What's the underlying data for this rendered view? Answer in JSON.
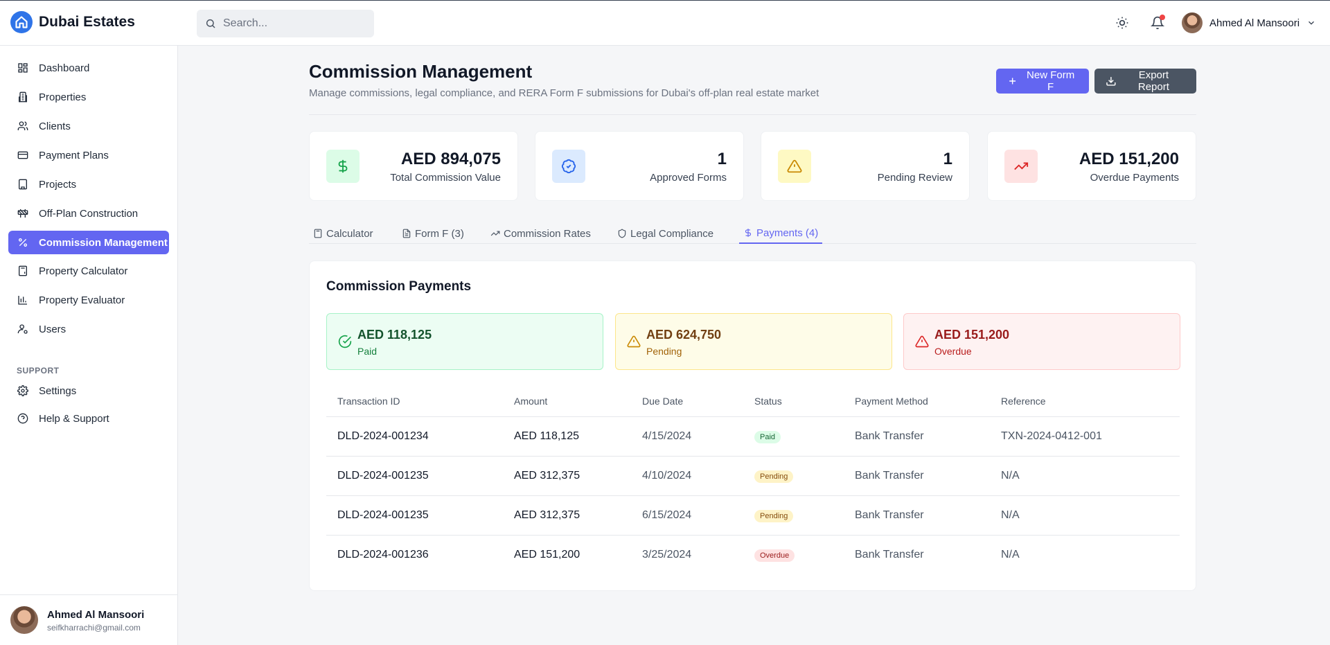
{
  "app": {
    "brand": "Dubai Estates",
    "search_placeholder": "Search...",
    "user_name": "Ahmed Al Mansoori"
  },
  "sidebar": {
    "items": [
      {
        "label": "Dashboard",
        "icon": "dashboard-icon"
      },
      {
        "label": "Properties",
        "icon": "building-icon"
      },
      {
        "label": "Clients",
        "icon": "users-icon"
      },
      {
        "label": "Payment Plans",
        "icon": "credit-card-icon"
      },
      {
        "label": "Projects",
        "icon": "office-icon"
      },
      {
        "label": "Off-Plan Construction",
        "icon": "construction-icon"
      },
      {
        "label": "Commission Management",
        "icon": "percent-icon",
        "active": true
      },
      {
        "label": "Property Calculator",
        "icon": "calculator-icon"
      },
      {
        "label": "Property Evaluator",
        "icon": "bar-chart-icon"
      },
      {
        "label": "Users",
        "icon": "user-key-icon"
      }
    ],
    "section_label": "SUPPORT",
    "support_items": [
      {
        "label": "Settings",
        "icon": "gear-icon"
      },
      {
        "label": "Help & Support",
        "icon": "help-icon"
      }
    ],
    "footer": {
      "name": "Ahmed Al Mansoori",
      "email": "seifkharrachi@gmail.com"
    }
  },
  "page": {
    "title": "Commission Management",
    "subtitle": "Manage commissions, legal compliance, and RERA Form F submissions for Dubai's off-plan real estate market",
    "new_form_label": "New Form F",
    "export_label": "Export Report"
  },
  "stats": [
    {
      "value": "AED 894,075",
      "label": "Total Commission Value",
      "icon": "dollar-icon",
      "bg": "#dcfce7",
      "fg": "#16a34a"
    },
    {
      "value": "1",
      "label": "Approved Forms",
      "icon": "check-badge-icon",
      "bg": "#dbeafe",
      "fg": "#2563eb"
    },
    {
      "value": "1",
      "label": "Pending Review",
      "icon": "warning-icon",
      "bg": "#fef9c3",
      "fg": "#ca8a04"
    },
    {
      "value": "AED 151,200",
      "label": "Overdue Payments",
      "icon": "trend-up-icon",
      "bg": "#fee2e2",
      "fg": "#dc2626"
    }
  ],
  "tabs": [
    {
      "label": "Calculator",
      "icon": "calculator-icon"
    },
    {
      "label": "Form F (3)",
      "icon": "document-icon"
    },
    {
      "label": "Commission Rates",
      "icon": "trend-up-icon"
    },
    {
      "label": "Legal Compliance",
      "icon": "shield-icon"
    },
    {
      "label": "Payments (4)",
      "icon": "dollar-icon",
      "active": true
    }
  ],
  "payments": {
    "title": "Commission Payments",
    "summary": [
      {
        "amount": "AED 118,125",
        "label": "Paid"
      },
      {
        "amount": "AED 624,750",
        "label": "Pending"
      },
      {
        "amount": "AED 151,200",
        "label": "Overdue"
      }
    ],
    "columns": [
      "Transaction ID",
      "Amount",
      "Due Date",
      "Status",
      "Payment Method",
      "Reference"
    ],
    "rows": [
      {
        "id": "DLD-2024-001234",
        "amount": "AED 118,125",
        "due": "4/15/2024",
        "status": "Paid",
        "method": "Bank Transfer",
        "ref": "TXN-2024-0412-001"
      },
      {
        "id": "DLD-2024-001235",
        "amount": "AED 312,375",
        "due": "4/10/2024",
        "status": "Pending",
        "method": "Bank Transfer",
        "ref": "N/A"
      },
      {
        "id": "DLD-2024-001235",
        "amount": "AED 312,375",
        "due": "6/15/2024",
        "status": "Pending",
        "method": "Bank Transfer",
        "ref": "N/A"
      },
      {
        "id": "DLD-2024-001236",
        "amount": "AED 151,200",
        "due": "3/25/2024",
        "status": "Overdue",
        "method": "Bank Transfer",
        "ref": "N/A"
      }
    ]
  }
}
